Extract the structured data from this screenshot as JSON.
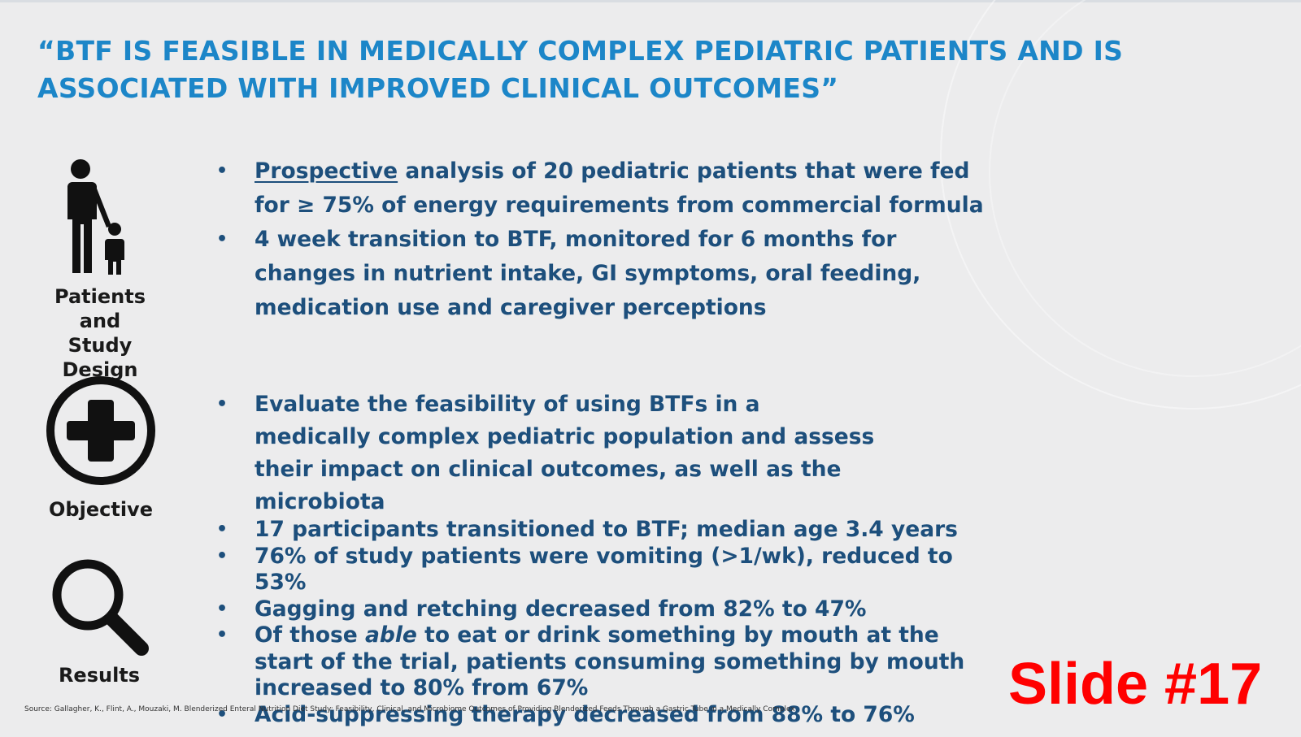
{
  "title": {
    "line1": "“BTF IS FEASIBLE IN MEDICALLY COMPLEX PEDIATRIC PATIENTS AND IS",
    "line2": "ASSOCIATED WITH IMPROVED CLINICAL OUTCOMES”"
  },
  "sections": {
    "patients": {
      "icon": "parent-child-icon",
      "label_line1": "Patients and",
      "label_line2": "Study Design",
      "bullets": [
        {
          "underlined_word": "Prospective",
          "rest": " analysis of 20 pediatric patients that were fed for ≥  75% of energy requirements from commercial formula"
        },
        {
          "text": "4 week transition to BTF, monitored for 6 months for changes in nutrient intake, GI symptoms, oral feeding, medication use and caregiver perceptions"
        }
      ]
    },
    "objective": {
      "icon": "medical-cross-icon",
      "label": "Objective",
      "bullets": [
        {
          "text": "Evaluate the feasibility of using BTFs in a medically complex pediatric population and assess their impact on clinical outcomes, as well as the microbiota"
        }
      ]
    },
    "results": {
      "icon": "magnifier-icon",
      "label": "Results",
      "bullets": [
        {
          "text": "17 participants transitioned to BTF; median age 3.4 years"
        },
        {
          "text": "76% of study patients were vomiting (>1/wk), reduced to 53%"
        },
        {
          "text": "Gagging and retching decreased from 82% to 47%"
        },
        {
          "pre": "Of those ",
          "italic": "able",
          "post": " to eat or drink something by mouth at the start of the trial, patients consuming something by mouth increased to 80% from 67%"
        },
        {
          "text": "Acid-suppressing therapy decreased from 88% to 76%"
        }
      ]
    }
  },
  "source": "Source: Gallagher, K., Flint, A., Mouzaki, M. Blenderized Enteral Nutrition Diet Study: Feasibility, Clinical, and Microbiome Outcomes of Providing Blenderized Feeds Through a Gastric Tube in a Medically Complex",
  "slide_number": "Slide #17",
  "colors": {
    "title": "#1c86c8",
    "body": "#1d4f7c",
    "slide_number": "#ff0000",
    "background": "#ececed"
  }
}
